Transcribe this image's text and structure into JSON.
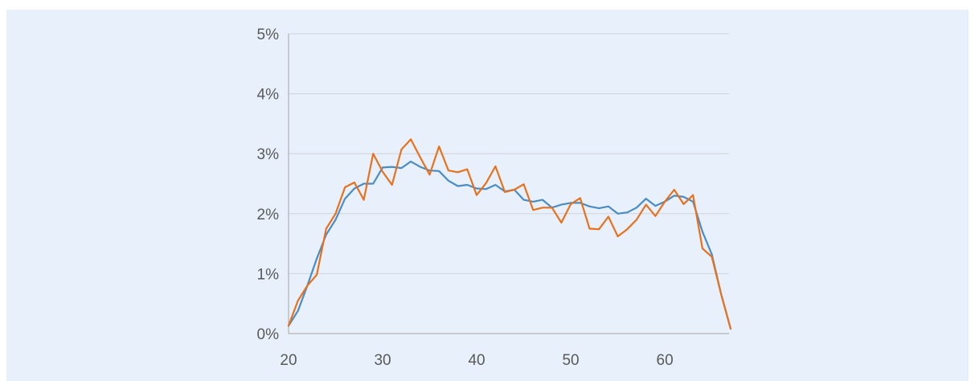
{
  "colors": {
    "panel_background": "#e8f0fb",
    "gridline": "#cfd4da",
    "axis": "#a6a6a6",
    "tick_text": "#595959"
  },
  "chart_data": {
    "type": "line",
    "title": "",
    "xlabel": "",
    "ylabel": "",
    "xlim": [
      20,
      67
    ],
    "ylim": [
      0,
      5
    ],
    "x_ticks": [
      20,
      30,
      40,
      50,
      60
    ],
    "x_tick_labels": [
      "20",
      "30",
      "40",
      "50",
      "60"
    ],
    "y_ticks": [
      0,
      1,
      2,
      3,
      4,
      5
    ],
    "y_tick_labels": [
      "0%",
      "1%",
      "2%",
      "3%",
      "4%",
      "5%"
    ],
    "y_unit": "%",
    "grid": "horizontal",
    "legend": "none",
    "x": [
      20,
      21,
      22,
      23,
      24,
      25,
      26,
      27,
      28,
      29,
      30,
      31,
      32,
      33,
      34,
      35,
      36,
      37,
      38,
      39,
      40,
      41,
      42,
      43,
      44,
      45,
      46,
      47,
      48,
      49,
      50,
      51,
      52,
      53,
      54,
      55,
      56,
      57,
      58,
      59,
      60,
      61,
      62,
      63,
      64,
      65,
      66,
      67
    ],
    "series": [
      {
        "color": "#4a8cc7",
        "values": [
          0.13,
          0.38,
          0.8,
          1.25,
          1.65,
          1.9,
          2.25,
          2.42,
          2.5,
          2.5,
          2.77,
          2.78,
          2.76,
          2.87,
          2.78,
          2.72,
          2.71,
          2.55,
          2.46,
          2.48,
          2.42,
          2.41,
          2.48,
          2.37,
          2.4,
          2.23,
          2.2,
          2.23,
          2.1,
          2.15,
          2.18,
          2.18,
          2.12,
          2.09,
          2.12,
          2.0,
          2.02,
          2.1,
          2.25,
          2.13,
          2.2,
          2.3,
          2.28,
          2.2,
          1.7,
          1.32,
          0.65,
          0.08
        ]
      },
      {
        "color": "#e8711c",
        "values": [
          0.13,
          0.55,
          0.8,
          0.98,
          1.75,
          2.0,
          2.44,
          2.52,
          2.23,
          3.0,
          2.7,
          2.48,
          3.07,
          3.24,
          2.94,
          2.65,
          3.12,
          2.72,
          2.69,
          2.74,
          2.31,
          2.51,
          2.79,
          2.36,
          2.4,
          2.49,
          2.06,
          2.1,
          2.1,
          1.85,
          2.16,
          2.26,
          1.75,
          1.74,
          1.95,
          1.62,
          1.74,
          1.9,
          2.15,
          1.96,
          2.2,
          2.4,
          2.16,
          2.31,
          1.42,
          1.28,
          0.65,
          0.08
        ]
      }
    ]
  }
}
